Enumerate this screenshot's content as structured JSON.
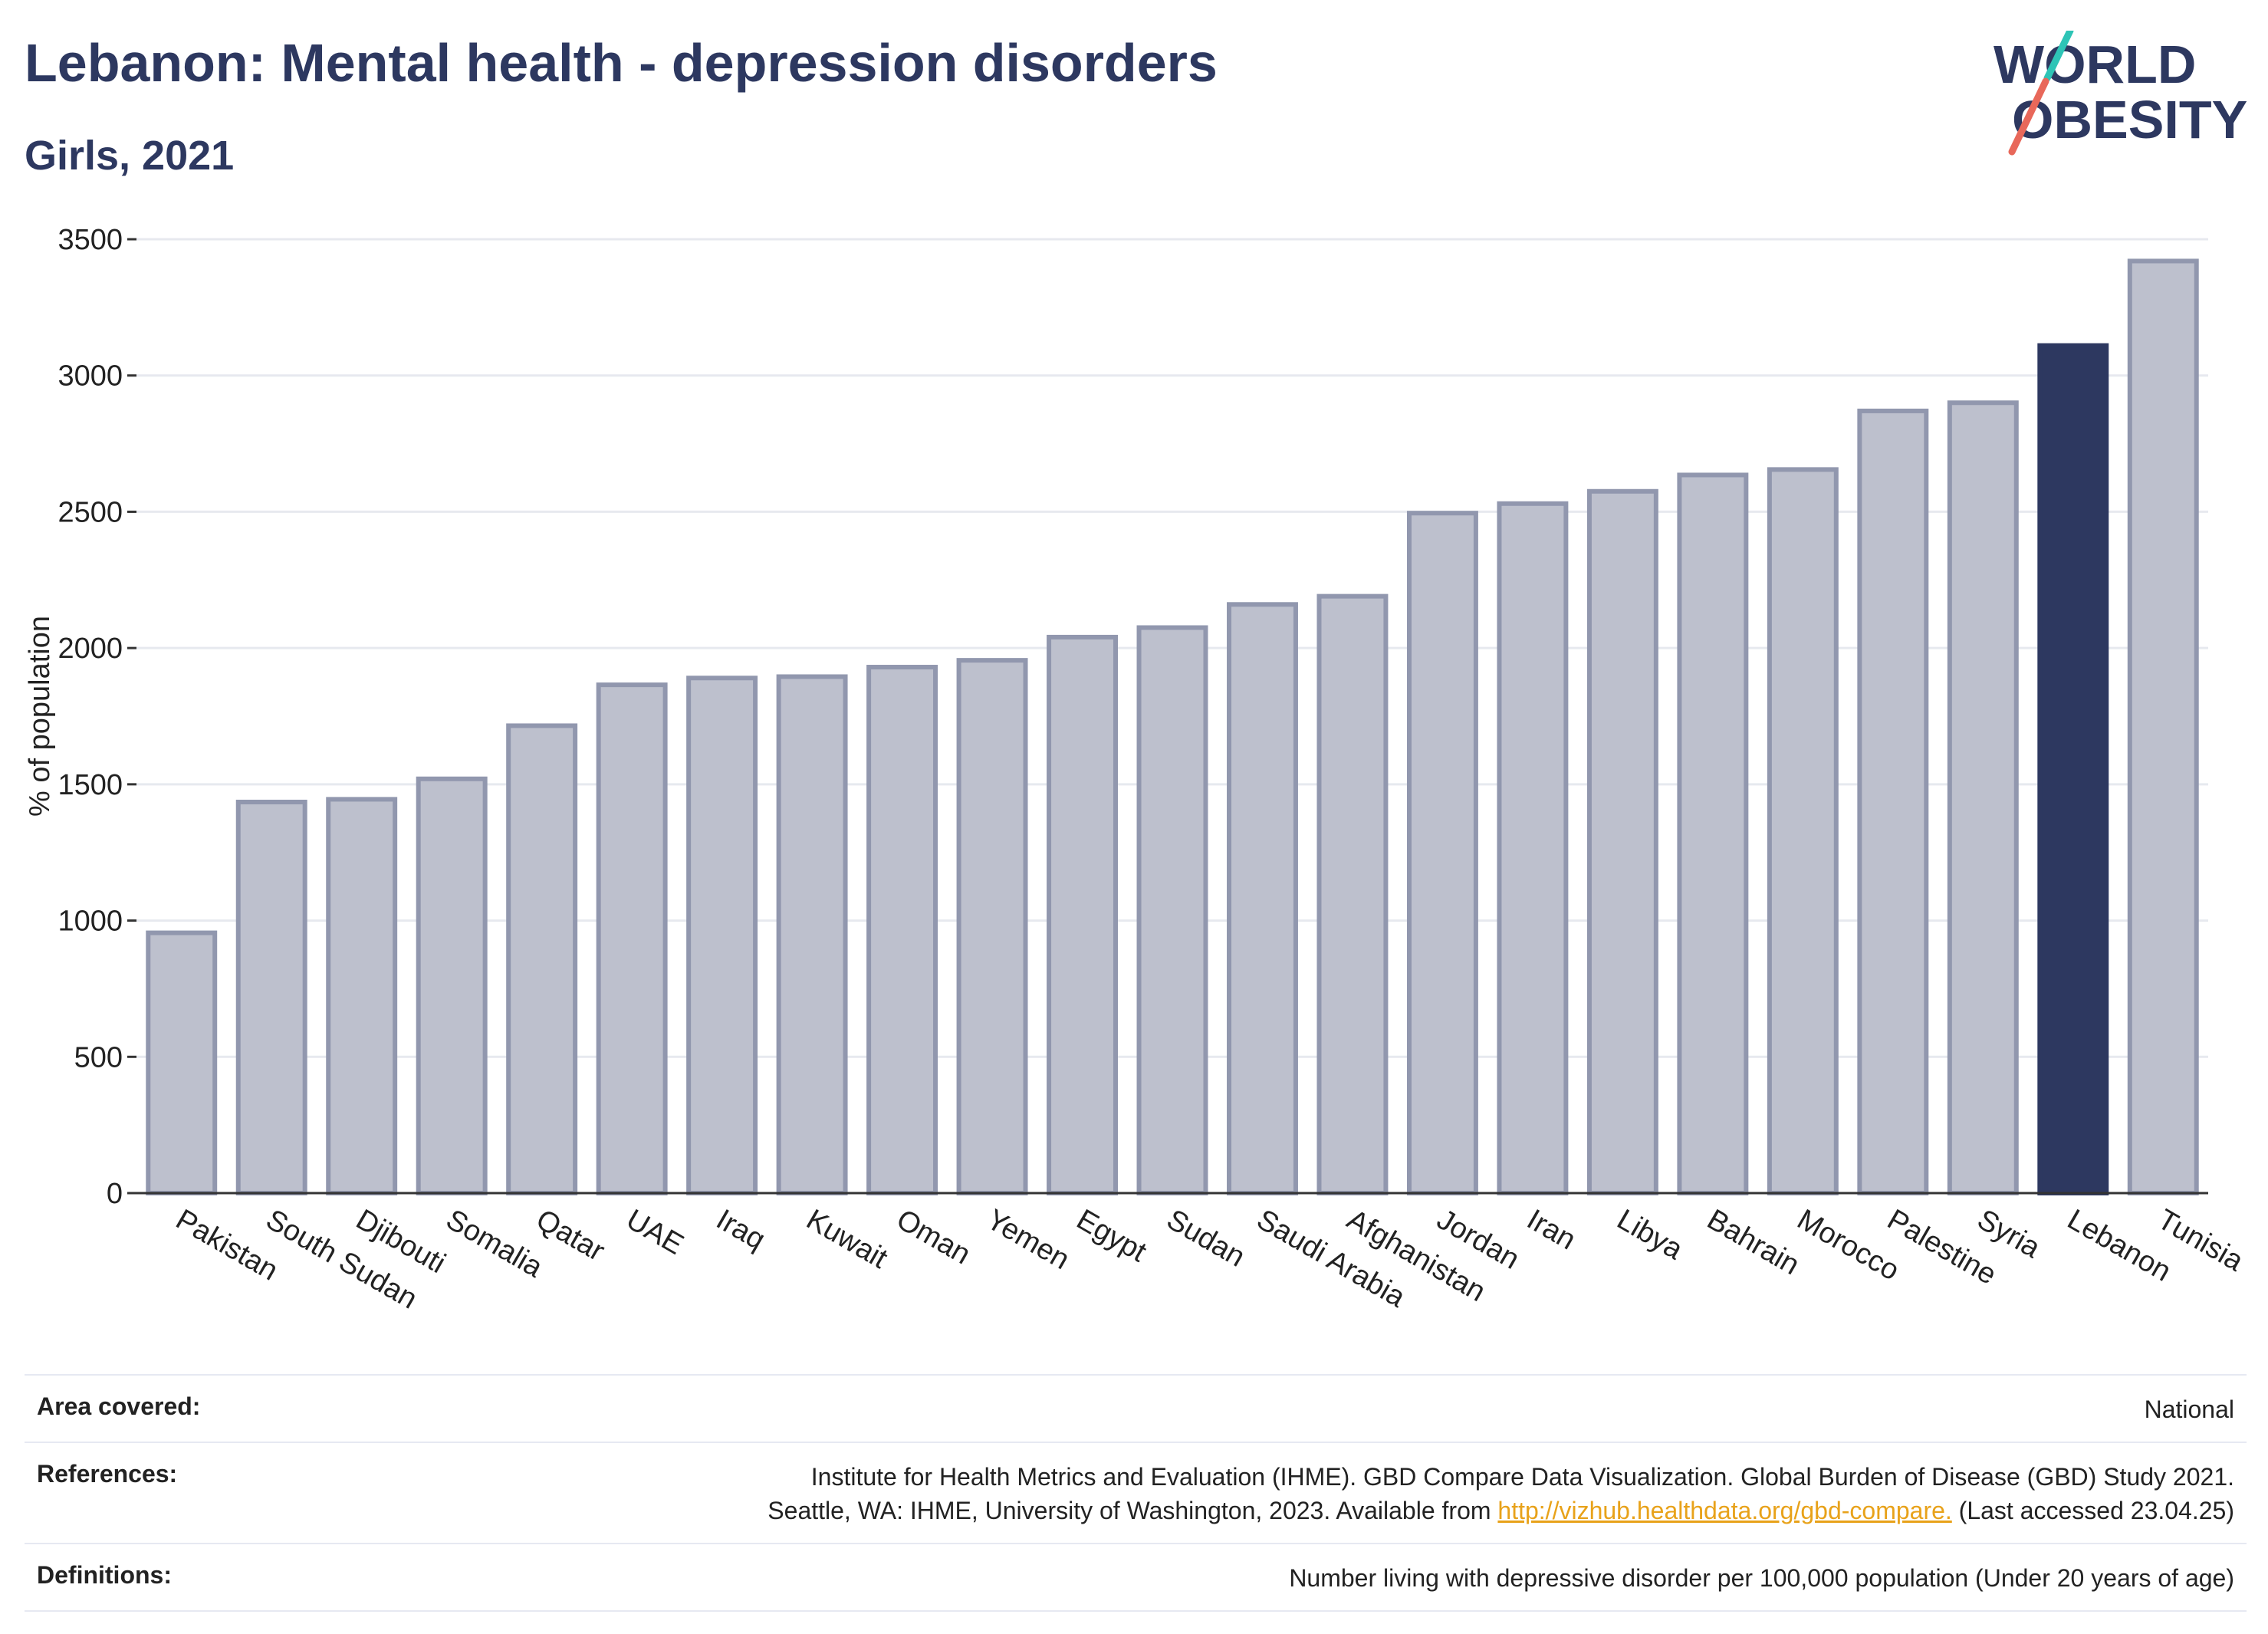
{
  "header": {
    "title": "Lebanon: Mental health - depression disorders",
    "subtitle": "Girls, 2021"
  },
  "logo": {
    "line1": "WORLD",
    "line2": "OBESITY",
    "text_color": "#2d3860",
    "slash_colors": [
      "#2ec4b6",
      "#e8685a"
    ]
  },
  "chart_data": {
    "type": "bar",
    "title": "Lebanon: Mental health - depression disorders",
    "subtitle": "Girls, 2021",
    "xlabel": "",
    "ylabel": "% of population",
    "ylim": [
      0,
      3500
    ],
    "yticks": [
      0,
      500,
      1000,
      1500,
      2000,
      2500,
      3000,
      3500
    ],
    "grid": true,
    "categories": [
      "Pakistan",
      "South Sudan",
      "Djibouti",
      "Somalia",
      "Qatar",
      "UAE",
      "Iraq",
      "Kuwait",
      "Oman",
      "Yemen",
      "Egypt",
      "Sudan",
      "Saudi Arabia",
      "Afghanistan",
      "Jordan",
      "Iran",
      "Libya",
      "Bahrain",
      "Morocco",
      "Palestine",
      "Syria",
      "Lebanon",
      "Tunisia"
    ],
    "values": [
      955,
      1435,
      1445,
      1520,
      1715,
      1865,
      1890,
      1895,
      1930,
      1955,
      2040,
      2075,
      2160,
      2190,
      2495,
      2530,
      2575,
      2635,
      2655,
      2870,
      2900,
      3110,
      3420
    ],
    "highlight": "Lebanon",
    "colors": {
      "bar_fill": "#bdc0cd",
      "bar_stroke": "#9197ae",
      "highlight": "#2d3860"
    }
  },
  "footer": {
    "area_label": "Area covered:",
    "area_value": "National",
    "references_label": "References:",
    "references_line1": "Institute for Health Metrics and Evaluation (IHME). GBD Compare Data Visualization. Global Burden of Disease (GBD) Study 2021.",
    "references_line2_prefix": "Seattle, WA: IHME, University of Washington, 2023. Available from ",
    "references_link": "http://vizhub.healthdata.org/gbd-compare.",
    "references_line2_suffix": " (Last accessed 23.04.25)",
    "definitions_label": "Definitions:",
    "definitions_value": "Number living with depressive disorder per 100,000 population (Under 20 years of age)"
  }
}
